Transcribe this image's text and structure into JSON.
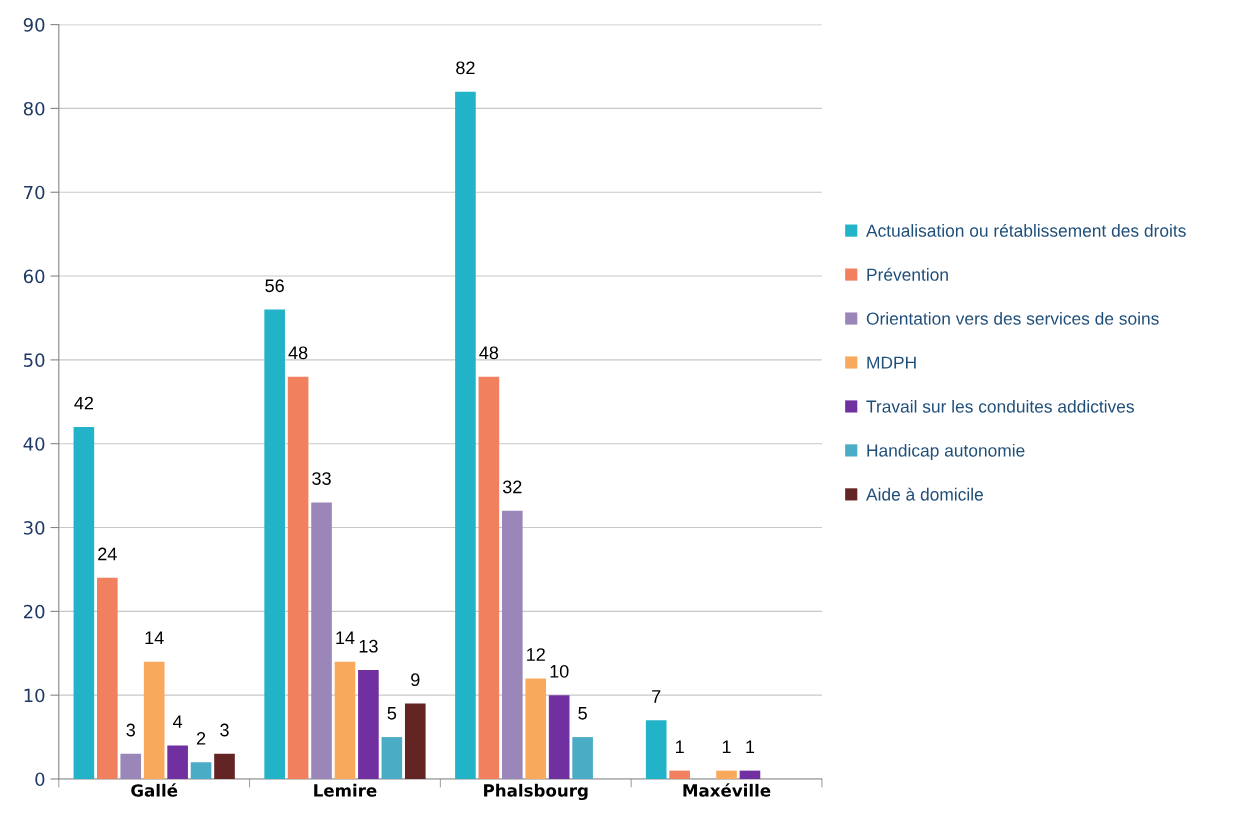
{
  "chart_data": {
    "type": "bar",
    "categories": [
      "Gallé",
      "Lemire",
      "Phalsbourg",
      "Maxéville"
    ],
    "series": [
      {
        "name": "Actualisation ou rétablissement des droits",
        "color": "#22b3c8",
        "values": [
          42,
          56,
          82,
          7
        ]
      },
      {
        "name": "Prévention",
        "color": "#f0805e",
        "values": [
          24,
          48,
          48,
          1
        ]
      },
      {
        "name": "Orientation vers des services de soins",
        "color": "#9a86b8",
        "values": [
          3,
          33,
          32,
          null
        ]
      },
      {
        "name": "MDPH",
        "color": "#f8a95c",
        "values": [
          14,
          14,
          12,
          1
        ]
      },
      {
        "name": "Travail sur les conduites addictives",
        "color": "#7030a0",
        "values": [
          4,
          13,
          10,
          1
        ]
      },
      {
        "name": "Handicap autonomie",
        "color": "#4bacc6",
        "values": [
          2,
          5,
          5,
          null
        ]
      },
      {
        "name": "Aide à domicile",
        "color": "#632523",
        "values": [
          3,
          9,
          null,
          null
        ]
      }
    ],
    "ylim": [
      0,
      90
    ],
    "yticks": [
      0,
      10,
      20,
      30,
      40,
      50,
      60,
      70,
      80,
      90
    ],
    "grid": "y",
    "legend": "right",
    "data_labels": true
  }
}
